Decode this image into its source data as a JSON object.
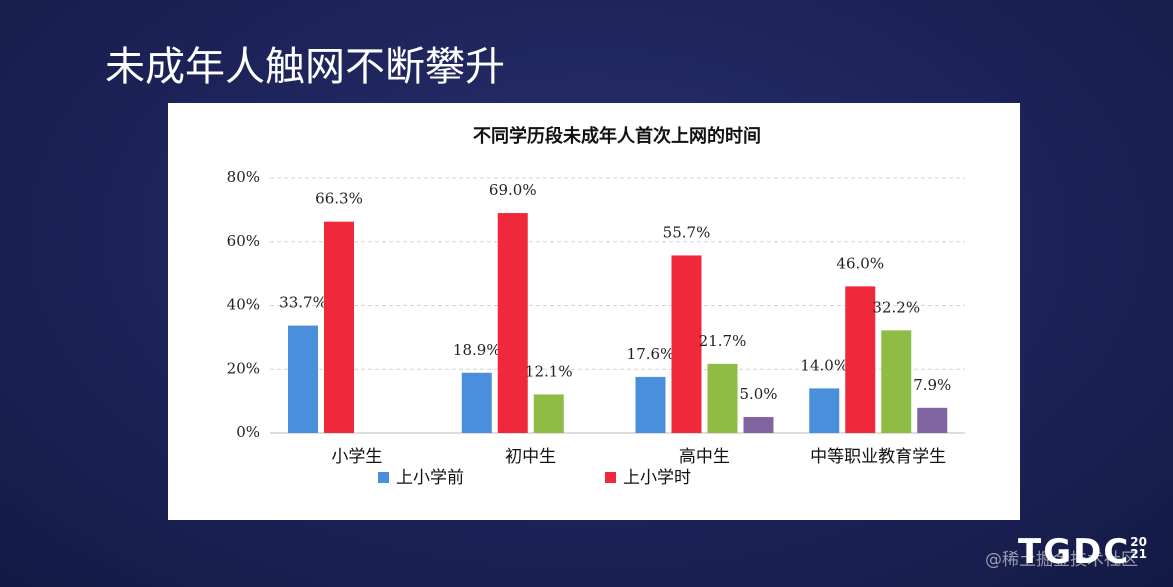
{
  "header": {
    "title": "未成年人触网不断攀升"
  },
  "chart_data": {
    "type": "bar",
    "title": "不同学历段未成年人首次上网的时间",
    "categories": [
      "小学生",
      "初中生",
      "高中生",
      "中等职业教育学生"
    ],
    "series": [
      {
        "name": "上小学前",
        "color": "#4a8fdc",
        "values": [
          33.7,
          18.9,
          17.6,
          14
        ],
        "value_labels": [
          "33.7%",
          "18.9%",
          "17.6%",
          "14.0%"
        ]
      },
      {
        "name": "上小学时",
        "color": "#f0283c",
        "values": [
          66.3,
          69,
          55.7,
          46
        ],
        "value_labels": [
          "66.3%",
          "69.0%",
          "55.7%",
          "46.0%"
        ]
      },
      {
        "color": "#8fbc45",
        "values": [
          null,
          12.1,
          21.7,
          32.2
        ],
        "value_labels": [
          null,
          "12.1%",
          "21.7%",
          "32.2%"
        ]
      },
      {
        "color": "#8064a2",
        "values": [
          null,
          null,
          5,
          7.9
        ],
        "value_labels": [
          null,
          null,
          "5.0%",
          "7.9%"
        ]
      }
    ],
    "ylim": [
      0,
      80
    ],
    "yticks": [
      {
        "value": 0,
        "label": "0%"
      },
      {
        "value": 20,
        "label": "20%"
      },
      {
        "value": 40,
        "label": "40%"
      },
      {
        "value": 60,
        "label": "60%"
      },
      {
        "value": 80,
        "label": "80%"
      }
    ],
    "grid": true,
    "legend": "bottom"
  },
  "logo": {
    "text": "TGDC",
    "year_top": "20",
    "year_bottom": "21"
  },
  "watermark": "@稀土掘金技术社区"
}
